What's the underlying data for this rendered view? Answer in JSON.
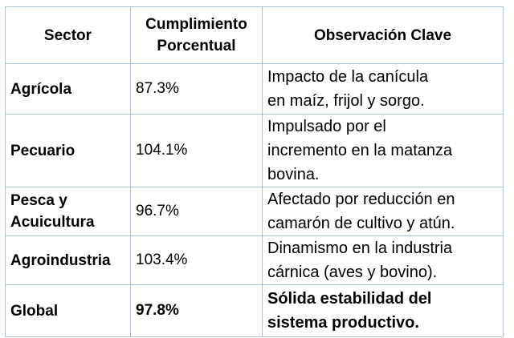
{
  "table": {
    "headers": {
      "sector": "Sector",
      "cumplimiento_l1": "Cumplimiento",
      "cumplimiento_l2": "Porcentual",
      "observacion": "Observación Clave"
    },
    "rows": [
      {
        "sector_lines": [
          "Agrícola"
        ],
        "percent": "87.3%",
        "observation_lines": [
          "Impacto de la canícula",
          "en maíz, frijol y sorgo."
        ]
      },
      {
        "sector_lines": [
          "Pecuario"
        ],
        "percent": "104.1%",
        "observation_lines": [
          "Impulsado por el",
          "incremento en la matanza",
          "bovina."
        ]
      },
      {
        "sector_lines": [
          "Pesca y",
          "Acuicultura"
        ],
        "percent": "96.7%",
        "observation_lines": [
          "Afectado por reducción en",
          "camarón de cultivo y atún."
        ]
      },
      {
        "sector_lines": [
          "Agroindustria"
        ],
        "percent": "103.4%",
        "observation_lines": [
          "Dinamismo en la industria",
          "cárnica (aves y bovino)."
        ]
      },
      {
        "sector_lines": [
          "Global"
        ],
        "percent": "97.8%",
        "observation_lines": [
          "Sólida estabilidad del",
          "sistema productivo."
        ]
      }
    ]
  },
  "colors": {
    "border": "#a8c4df",
    "text": "#000000",
    "background": "#ffffff"
  }
}
